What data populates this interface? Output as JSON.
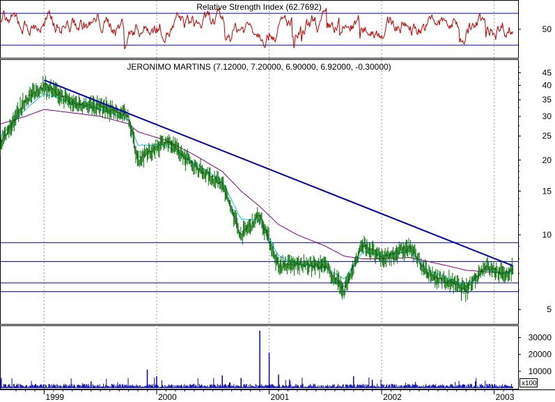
{
  "chart_data": [
    {
      "panel": "rsi",
      "type": "line",
      "title": "Relative Strength Index (62.7692)",
      "y_ticks": [
        50
      ],
      "ylim": [
        15,
        85
      ],
      "reference_levels": [
        70,
        30
      ],
      "colors": {
        "line": "#c00000",
        "levels": "#0000a0"
      }
    },
    {
      "panel": "price",
      "type": "line",
      "title": "JERONIMO MARTINS (7.12000, 7.20000, 6.90000, 6.92000, -0.30000)",
      "log_scale": true,
      "ylim": [
        4.4,
        50
      ],
      "y_ticks": [
        45,
        40,
        35,
        30,
        25,
        20,
        15,
        10,
        5
      ],
      "x": [
        "1998-07",
        "1998-11",
        "1999-01",
        "1999-04",
        "1999-07",
        "1999-10",
        "1999-11",
        "2000-02",
        "2000-05",
        "2000-08",
        "2000-10",
        "2000-12",
        "2001-02",
        "2001-04",
        "2001-07",
        "2001-09",
        "2001-11",
        "2002-01",
        "2002-04",
        "2002-06",
        "2002-08",
        "2002-10",
        "2002-12",
        "2003-02",
        "2003-03"
      ],
      "close": [
        19,
        35,
        40,
        34,
        33,
        30,
        20,
        24,
        19,
        16,
        10,
        12,
        7.5,
        7.6,
        7.5,
        6.0,
        9.2,
        8.0,
        8.9,
        6.9,
        6.5,
        6.0,
        7.5,
        6.9,
        7.3
      ],
      "sma_short": [
        22,
        32,
        37,
        34,
        32,
        29,
        23,
        23,
        19.5,
        16.5,
        11.5,
        11.5,
        8.2,
        7.6,
        7.4,
        6.6,
        8.6,
        8.2,
        8.6,
        7.2,
        6.7,
        6.2,
        7.2,
        7.0,
        7.0
      ],
      "sma_long": [
        27,
        30,
        32,
        31,
        30,
        28,
        26,
        24,
        21,
        18,
        15,
        13,
        11,
        10,
        9,
        8.2,
        8.0,
        8.0,
        8.1,
        7.8,
        7.5,
        7.2,
        7.1,
        7.0,
        7.2
      ],
      "trendline": {
        "start": {
          "x": "1999-01",
          "y": 42
        },
        "end": {
          "x": "2003-03",
          "y": 7.5
        }
      },
      "support_levels": [
        9.3,
        7.8,
        6.4,
        5.9
      ],
      "colors": {
        "price": "#007000",
        "sma_short": "#00c8d8",
        "sma_long": "#800080",
        "trendline": "#0000b0",
        "levels": "#0000a0"
      }
    },
    {
      "panel": "volume",
      "type": "bar",
      "y_ticks": [
        30000,
        20000,
        10000
      ],
      "unit_label": "x100",
      "ylim": [
        0,
        36000
      ],
      "bars": [
        {
          "x": "1999-06",
          "v": 4000
        },
        {
          "x": "1999-12",
          "v": 11000
        },
        {
          "x": "2000-01",
          "v": 7000
        },
        {
          "x": "2000-08",
          "v": 7500
        },
        {
          "x": "2000-10",
          "v": 6000
        },
        {
          "x": "2000-12",
          "v": 34000
        },
        {
          "x": "2001-01",
          "v": 21000
        },
        {
          "x": "2001-02",
          "v": 8000
        },
        {
          "x": "2001-10",
          "v": 7000
        },
        {
          "x": "2001-12",
          "v": 5000
        },
        {
          "x": "2002-11",
          "v": 4000
        }
      ],
      "typical_volume": 1500,
      "colors": {
        "bars": "#0000c0"
      }
    },
    {
      "panel": "x-axis",
      "x_tick_labels": [
        "1999",
        "2000",
        "2001",
        "2002",
        "2003"
      ],
      "x_ticks": [
        "1999-01",
        "2000-01",
        "2001-01",
        "2002-01",
        "2003-01"
      ]
    }
  ]
}
